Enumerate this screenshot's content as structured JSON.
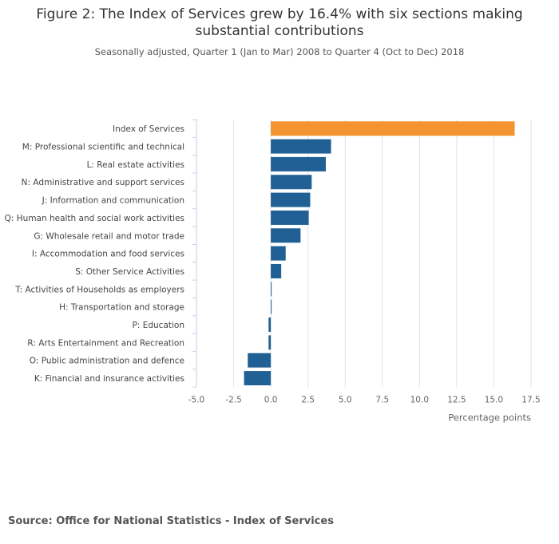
{
  "chart_data": {
    "type": "bar",
    "orientation": "horizontal",
    "title": "Figure 2: The Index of Services grew by 16.4% with six sections making substantial contributions",
    "subtitle": "Seasonally adjusted, Quarter 1 (Jan to Mar) 2008 to Quarter 4 (Oct to Dec) 2018",
    "xlabel": "Percentage points",
    "ylabel": "",
    "xlim": [
      -5,
      17.5
    ],
    "xticks": [
      "-5.0",
      "-2.5",
      "0.0",
      "2.5",
      "5.0",
      "7.5",
      "10.0",
      "12.5",
      "15.0",
      "17.5"
    ],
    "grid": true,
    "categories": [
      "Index of Services",
      "M: Professional scientific and technical",
      "L: Real estate activities",
      "N: Administrative and support services",
      "J: Information and communication",
      "Q: Human health and social work activities",
      "G: Wholesale retail and motor trade",
      "I: Accommodation and food services",
      "S: Other Service Activities",
      "T: Activities of Households as employers",
      "H: Transportation and storage",
      "P: Education",
      "R: Arts Entertainment and Recreation",
      "O: Public administration and defence",
      "K: Financial and insurance activities"
    ],
    "values": [
      16.4,
      4.05,
      3.7,
      2.75,
      2.65,
      2.55,
      2.0,
      1.0,
      0.7,
      0.05,
      0.05,
      -0.15,
      -0.15,
      -1.55,
      -1.8
    ],
    "colors": {
      "highlight": "#f39431",
      "default": "#206095",
      "grid": "#e2e2e2",
      "axis": "#c6d0e6"
    }
  },
  "source": "Source: Office for National Statistics - Index of Services"
}
